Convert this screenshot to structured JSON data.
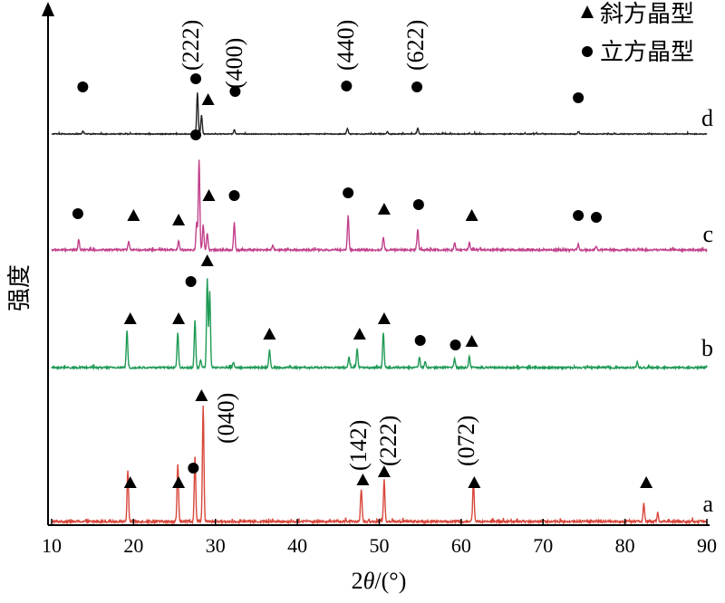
{
  "chart_data": {
    "type": "line",
    "title": "",
    "xlabel_prefix": "2",
    "xlabel_var": "θ",
    "xlabel_suffix": "/(°)",
    "ylabel": "强度",
    "xlim": [
      10,
      90
    ],
    "xticks": [
      10,
      20,
      30,
      40,
      50,
      60,
      70,
      80,
      90
    ],
    "legend": {
      "placement": "top-right",
      "entries": [
        {
          "marker": "triangle",
          "label": "斜方晶型"
        },
        {
          "marker": "circle",
          "label": "立方晶型"
        }
      ]
    },
    "series": [
      {
        "name": "a",
        "color": "#d8473b",
        "peaks": [
          {
            "x": 19.3,
            "h": 0.44
          },
          {
            "x": 25.4,
            "h": 0.5
          },
          {
            "x": 27.5,
            "h": 0.56
          },
          {
            "x": 28.5,
            "h": 1.0
          },
          {
            "x": 47.8,
            "h": 0.28
          },
          {
            "x": 50.6,
            "h": 0.36
          },
          {
            "x": 61.5,
            "h": 0.36
          },
          {
            "x": 82.3,
            "h": 0.16
          },
          {
            "x": 84.0,
            "h": 0.08
          }
        ],
        "markers": [
          {
            "x": 19.6,
            "type": "triangle"
          },
          {
            "x": 25.5,
            "type": "triangle"
          },
          {
            "x": 27.3,
            "type": "circle"
          },
          {
            "x": 28.3,
            "type": "triangle"
          },
          {
            "x": 48.0,
            "type": "triangle"
          },
          {
            "x": 50.6,
            "type": "triangle"
          },
          {
            "x": 61.6,
            "type": "triangle"
          },
          {
            "x": 82.6,
            "type": "triangle"
          }
        ]
      },
      {
        "name": "b",
        "color": "#1f9a55",
        "peaks": [
          {
            "x": 19.2,
            "h": 0.42
          },
          {
            "x": 25.4,
            "h": 0.4
          },
          {
            "x": 27.5,
            "h": 0.54
          },
          {
            "x": 28.2,
            "h": 0.08
          },
          {
            "x": 29.0,
            "h": 1.0
          },
          {
            "x": 29.3,
            "h": 0.86
          },
          {
            "x": 32.2,
            "h": 0.06
          },
          {
            "x": 36.6,
            "h": 0.2
          },
          {
            "x": 46.3,
            "h": 0.12
          },
          {
            "x": 47.3,
            "h": 0.22
          },
          {
            "x": 50.5,
            "h": 0.4
          },
          {
            "x": 54.9,
            "h": 0.12
          },
          {
            "x": 55.6,
            "h": 0.07
          },
          {
            "x": 59.2,
            "h": 0.1
          },
          {
            "x": 61.0,
            "h": 0.12
          },
          {
            "x": 81.5,
            "h": 0.07
          }
        ],
        "markers": [
          {
            "x": 19.6,
            "type": "triangle"
          },
          {
            "x": 25.5,
            "type": "triangle"
          },
          {
            "x": 27.0,
            "type": "circle"
          },
          {
            "x": 29.0,
            "type": "triangle"
          },
          {
            "x": 36.6,
            "type": "triangle"
          },
          {
            "x": 47.6,
            "type": "triangle"
          },
          {
            "x": 50.6,
            "type": "triangle"
          },
          {
            "x": 55.0,
            "type": "circle"
          },
          {
            "x": 59.3,
            "type": "circle"
          },
          {
            "x": 61.3,
            "type": "triangle"
          }
        ]
      },
      {
        "name": "c",
        "color": "#c2418c",
        "peaks": [
          {
            "x": 13.3,
            "h": 0.12
          },
          {
            "x": 19.4,
            "h": 0.09
          },
          {
            "x": 25.5,
            "h": 0.1
          },
          {
            "x": 27.7,
            "h": 0.3
          },
          {
            "x": 28.0,
            "h": 1.0
          },
          {
            "x": 28.5,
            "h": 0.28
          },
          {
            "x": 29.0,
            "h": 0.18
          },
          {
            "x": 32.3,
            "h": 0.3
          },
          {
            "x": 37.0,
            "h": 0.05
          },
          {
            "x": 46.2,
            "h": 0.38
          },
          {
            "x": 50.5,
            "h": 0.14
          },
          {
            "x": 54.7,
            "h": 0.22
          },
          {
            "x": 59.2,
            "h": 0.08
          },
          {
            "x": 61.0,
            "h": 0.08
          },
          {
            "x": 74.3,
            "h": 0.06
          },
          {
            "x": 76.5,
            "h": 0.04
          }
        ],
        "markers": [
          {
            "x": 13.2,
            "type": "circle"
          },
          {
            "x": 20.0,
            "type": "triangle"
          },
          {
            "x": 25.5,
            "type": "triangle"
          },
          {
            "x": 29.2,
            "type": "triangle"
          },
          {
            "x": 32.3,
            "type": "circle"
          },
          {
            "x": 46.2,
            "type": "circle"
          },
          {
            "x": 50.6,
            "type": "triangle"
          },
          {
            "x": 54.8,
            "type": "circle"
          },
          {
            "x": 61.3,
            "type": "triangle"
          },
          {
            "x": 74.3,
            "type": "circle"
          },
          {
            "x": 76.5,
            "type": "circle"
          }
        ]
      },
      {
        "name": "d",
        "color": "#222222",
        "peaks": [
          {
            "x": 13.8,
            "h": 0.06
          },
          {
            "x": 27.8,
            "h": 1.0
          },
          {
            "x": 28.3,
            "h": 0.45
          },
          {
            "x": 32.3,
            "h": 0.1
          },
          {
            "x": 46.1,
            "h": 0.13
          },
          {
            "x": 51.0,
            "h": 0.05
          },
          {
            "x": 54.7,
            "h": 0.13
          },
          {
            "x": 74.3,
            "h": 0.05
          }
        ],
        "markers": [
          {
            "x": 13.8,
            "type": "circle"
          },
          {
            "x": 27.6,
            "type": "circle"
          },
          {
            "x": 27.6,
            "type": "circle",
            "below": true
          },
          {
            "x": 29.1,
            "type": "triangle"
          },
          {
            "x": 32.4,
            "type": "circle"
          },
          {
            "x": 46.0,
            "type": "circle"
          },
          {
            "x": 54.6,
            "type": "circle"
          },
          {
            "x": 74.3,
            "type": "circle"
          }
        ]
      }
    ],
    "annotations": [
      {
        "text": "(222)",
        "x": 28.1,
        "series": "d"
      },
      {
        "text": "(400)",
        "x": 32.0,
        "series": "d"
      },
      {
        "text": "(440)",
        "x": 45.9,
        "series": "d"
      },
      {
        "text": "(622)",
        "x": 54.6,
        "series": "d"
      },
      {
        "text": "(040)",
        "x": 31.2,
        "series": "a"
      },
      {
        "text": "(142)",
        "x": 47.9,
        "series": "a"
      },
      {
        "text": "(222)",
        "x": 51.0,
        "series": "a"
      },
      {
        "text": "(072)",
        "x": 61.3,
        "series": "a"
      }
    ]
  }
}
